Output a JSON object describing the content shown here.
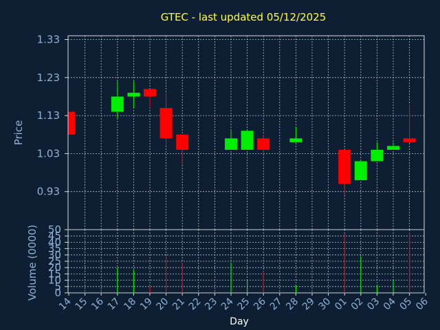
{
  "chart_data": {
    "type": "candlestick",
    "title": "GTEC - last updated 05/12/2025",
    "xlabel": "Day",
    "ylabel": "Price",
    "volume_label": "Volume (0000)",
    "x_labels": [
      "14",
      "15",
      "16",
      "17",
      "18",
      "19",
      "20",
      "21",
      "22",
      "23",
      "24",
      "25",
      "26",
      "27",
      "28",
      "29",
      "30",
      "01",
      "02",
      "03",
      "04",
      "05",
      "06"
    ],
    "price_ticks": [
      "1.33",
      "1.23",
      "1.13",
      "1.03",
      "0.93"
    ],
    "price_range": [
      0.83,
      1.34
    ],
    "volume_ticks": [
      "50",
      "45",
      "40",
      "35",
      "30",
      "25",
      "20",
      "15",
      "10",
      "5",
      "0"
    ],
    "volume_range": [
      0,
      50
    ],
    "grid": true,
    "colors": {
      "up": "#00ee00",
      "down": "#ff0000",
      "title": "#ffff33",
      "axis_text": "#8fb3d6",
      "background": "#0f1f33",
      "grid": "#b8c2cc"
    },
    "candles": [
      {
        "x": "14",
        "open": 1.14,
        "high": 1.14,
        "low": 1.08,
        "close": 1.08,
        "volume": 0
      },
      {
        "x": "17",
        "open": 1.14,
        "high": 1.22,
        "low": 1.12,
        "close": 1.18,
        "volume": 20
      },
      {
        "x": "18",
        "open": 1.18,
        "high": 1.22,
        "low": 1.15,
        "close": 1.19,
        "volume": 18
      },
      {
        "x": "19",
        "open": 1.2,
        "high": 1.2,
        "low": 1.15,
        "close": 1.18,
        "volume": 5
      },
      {
        "x": "20",
        "open": 1.15,
        "high": 1.19,
        "low": 1.05,
        "close": 1.07,
        "volume": 29
      },
      {
        "x": "21",
        "open": 1.08,
        "high": 1.08,
        "low": 1.0,
        "close": 1.04,
        "volume": 24
      },
      {
        "x": "24",
        "open": 1.04,
        "high": 1.09,
        "low": 1.04,
        "close": 1.07,
        "volume": 24
      },
      {
        "x": "25",
        "open": 1.04,
        "high": 1.09,
        "low": 1.04,
        "close": 1.09,
        "volume": 10
      },
      {
        "x": "26",
        "open": 1.07,
        "high": 1.08,
        "low": 1.03,
        "close": 1.04,
        "volume": 17
      },
      {
        "x": "28",
        "open": 1.06,
        "high": 1.1,
        "low": 1.06,
        "close": 1.07,
        "volume": 6
      },
      {
        "x": "01",
        "open": 1.04,
        "high": 1.04,
        "low": 0.92,
        "close": 0.95,
        "volume": 47
      },
      {
        "x": "02",
        "open": 0.96,
        "high": 1.01,
        "low": 0.96,
        "close": 1.01,
        "volume": 29
      },
      {
        "x": "03",
        "open": 1.01,
        "high": 1.06,
        "low": 1.01,
        "close": 1.04,
        "volume": 6
      },
      {
        "x": "04",
        "open": 1.04,
        "high": 1.06,
        "low": 1.04,
        "close": 1.05,
        "volume": 10
      },
      {
        "x": "05",
        "open": 1.07,
        "high": 1.16,
        "low": 1.06,
        "close": 1.06,
        "volume": 48
      }
    ]
  }
}
